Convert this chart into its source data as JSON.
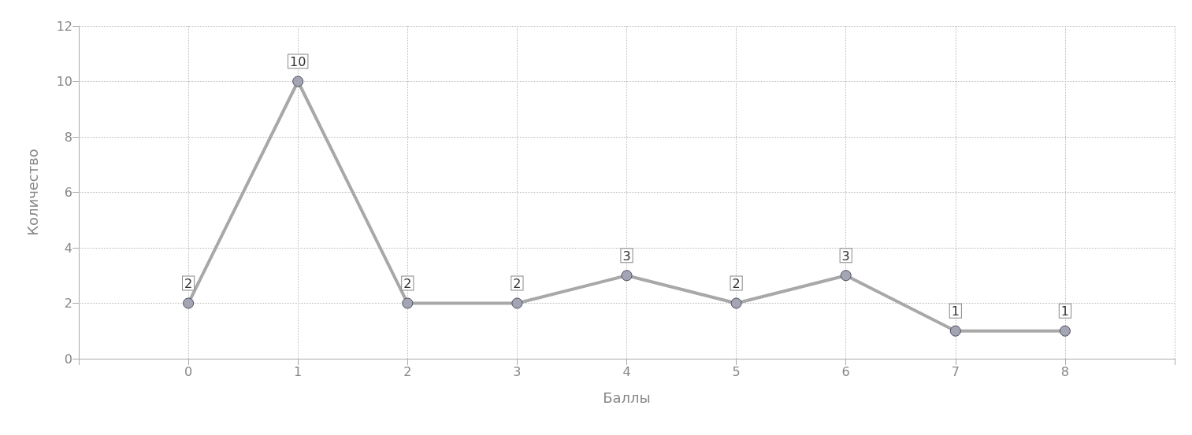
{
  "chart_data": {
    "type": "line",
    "xlabel": "Баллы",
    "ylabel": "Количество",
    "x": [
      0,
      1,
      2,
      3,
      4,
      5,
      6,
      7,
      8
    ],
    "series": [
      {
        "color": "#a3a5b5",
        "values": [
          2,
          10,
          2,
          2,
          3,
          2,
          3,
          1,
          1
        ]
      }
    ],
    "xlim": [
      -1,
      9
    ],
    "xticks": [
      {
        "value": -1,
        "label": null
      },
      0,
      1,
      2,
      3,
      4,
      5,
      6,
      7,
      8,
      {
        "value": 9,
        "label": null
      }
    ],
    "ylim": [
      0,
      12
    ],
    "yticks": [
      0,
      2,
      4,
      6,
      8,
      10,
      12
    ],
    "grid": true,
    "marker": "circle",
    "line_style": "solid",
    "data_labels": true
  }
}
